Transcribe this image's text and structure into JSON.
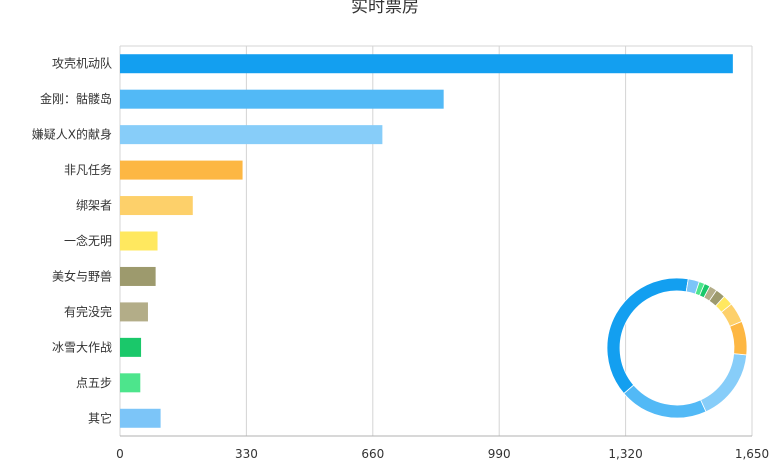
{
  "chart_data": {
    "type": "bar",
    "orientation": "horizontal",
    "title": "实时票房",
    "categories": [
      "攻壳机动队",
      "金刚：骷髅岛",
      "嫌疑人X的献身",
      "非凡任务",
      "绑架者",
      "一念无明",
      "美女与野兽",
      "有完没完",
      "冰雪大作战",
      "点五步",
      "其它"
    ],
    "values": [
      1600,
      845,
      685,
      320,
      190,
      98,
      93,
      73,
      55,
      53,
      106
    ],
    "colors": [
      "#139ff0",
      "#52b9f6",
      "#87cdf9",
      "#fdb743",
      "#fdd06a",
      "#ffe85f",
      "#9d9a6d",
      "#b3ad88",
      "#1ac86a",
      "#4de58c",
      "#7cc5f8"
    ],
    "x_ticks": [
      "0",
      "330",
      "660",
      "990",
      "1,320",
      "1,650"
    ],
    "xlim": [
      0,
      1650
    ],
    "grid": true,
    "inset": {
      "type": "donut",
      "values": [
        1600,
        845,
        685,
        320,
        190,
        98,
        93,
        73,
        55,
        53,
        106
      ],
      "colors": [
        "#139ff0",
        "#52b9f6",
        "#87cdf9",
        "#fdb743",
        "#fdd06a",
        "#ffe85f",
        "#9d9a6d",
        "#b3ad88",
        "#1ac86a",
        "#4de58c",
        "#7cc5f8"
      ]
    }
  }
}
